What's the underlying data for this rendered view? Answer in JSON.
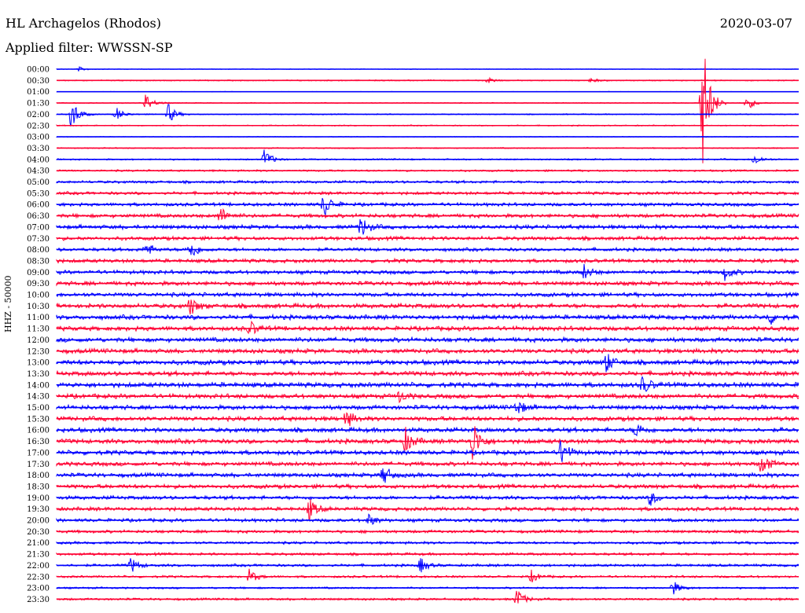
{
  "header": {
    "station": "HL Archagelos (Rhodos)",
    "filter": "Applied filter: WWSSN-SP",
    "date": "2020-03-07"
  },
  "chart_data": {
    "type": "line",
    "title": "HL Archagelos (Rhodos)",
    "subtitle": "Applied filter: WWSSN-SP",
    "date": "2020-03-07",
    "ylabel": "HHZ - 50000",
    "xlabel": "",
    "grid": false,
    "legend": "none",
    "colors": [
      "#0000ff",
      "#ff0033"
    ],
    "rows": [
      "00:00",
      "00:30",
      "01:00",
      "01:30",
      "02:00",
      "02:30",
      "03:00",
      "03:30",
      "04:00",
      "04:30",
      "05:00",
      "05:30",
      "06:00",
      "06:30",
      "07:00",
      "07:30",
      "08:00",
      "08:30",
      "09:00",
      "09:30",
      "10:00",
      "10:30",
      "11:00",
      "11:30",
      "12:00",
      "12:30",
      "13:00",
      "13:30",
      "14:00",
      "14:30",
      "15:00",
      "15:30",
      "16:00",
      "16:30",
      "17:00",
      "17:30",
      "18:00",
      "18:30",
      "19:00",
      "19:30",
      "20:00",
      "20:30",
      "21:00",
      "21:30",
      "22:00",
      "22:30",
      "23:00",
      "23:30"
    ],
    "noise_level": [
      0.3,
      0.6,
      0.3,
      0.5,
      0.6,
      0.6,
      0.4,
      0.6,
      0.8,
      1.0,
      1.4,
      1.6,
      1.8,
      2.0,
      2.2,
      2.0,
      1.8,
      2.0,
      2.0,
      2.2,
      2.2,
      2.4,
      2.4,
      2.4,
      2.4,
      2.4,
      2.6,
      2.4,
      2.6,
      2.4,
      2.4,
      2.4,
      2.4,
      2.4,
      2.4,
      2.2,
      2.2,
      2.2,
      2.0,
      2.0,
      1.8,
      1.6,
      1.4,
      1.4,
      1.4,
      1.2,
      1.0,
      1.2
    ],
    "events": [
      {
        "row": 0,
        "pos": 0.03,
        "amp": 3
      },
      {
        "row": 1,
        "pos": 0.58,
        "amp": 4
      },
      {
        "row": 1,
        "pos": 0.72,
        "amp": 3
      },
      {
        "row": 3,
        "pos": 0.12,
        "amp": 12
      },
      {
        "row": 3,
        "pos": 0.87,
        "amp": 95
      },
      {
        "row": 3,
        "pos": 0.93,
        "amp": 10
      },
      {
        "row": 4,
        "pos": 0.02,
        "amp": 22
      },
      {
        "row": 4,
        "pos": 0.08,
        "amp": 10
      },
      {
        "row": 4,
        "pos": 0.15,
        "amp": 14
      },
      {
        "row": 8,
        "pos": 0.28,
        "amp": 14
      },
      {
        "row": 8,
        "pos": 0.94,
        "amp": 8
      },
      {
        "row": 12,
        "pos": 0.36,
        "amp": 18
      },
      {
        "row": 13,
        "pos": 0.22,
        "amp": 12
      },
      {
        "row": 14,
        "pos": 0.41,
        "amp": 14
      },
      {
        "row": 16,
        "pos": 0.12,
        "amp": 10
      },
      {
        "row": 16,
        "pos": 0.18,
        "amp": 14
      },
      {
        "row": 18,
        "pos": 0.71,
        "amp": 10
      },
      {
        "row": 18,
        "pos": 0.9,
        "amp": 10
      },
      {
        "row": 21,
        "pos": 0.18,
        "amp": 12
      },
      {
        "row": 22,
        "pos": 0.96,
        "amp": 10
      },
      {
        "row": 23,
        "pos": 0.26,
        "amp": 10
      },
      {
        "row": 26,
        "pos": 0.74,
        "amp": 14
      },
      {
        "row": 28,
        "pos": 0.79,
        "amp": 12
      },
      {
        "row": 29,
        "pos": 0.46,
        "amp": 8
      },
      {
        "row": 30,
        "pos": 0.62,
        "amp": 10
      },
      {
        "row": 31,
        "pos": 0.39,
        "amp": 12
      },
      {
        "row": 32,
        "pos": 0.78,
        "amp": 10
      },
      {
        "row": 33,
        "pos": 0.56,
        "amp": 30
      },
      {
        "row": 33,
        "pos": 0.47,
        "amp": 16
      },
      {
        "row": 34,
        "pos": 0.68,
        "amp": 18
      },
      {
        "row": 35,
        "pos": 0.95,
        "amp": 16
      },
      {
        "row": 36,
        "pos": 0.44,
        "amp": 14
      },
      {
        "row": 38,
        "pos": 0.8,
        "amp": 10
      },
      {
        "row": 39,
        "pos": 0.34,
        "amp": 14
      },
      {
        "row": 40,
        "pos": 0.42,
        "amp": 8
      },
      {
        "row": 44,
        "pos": 0.1,
        "amp": 10
      },
      {
        "row": 44,
        "pos": 0.49,
        "amp": 10
      },
      {
        "row": 45,
        "pos": 0.26,
        "amp": 10
      },
      {
        "row": 45,
        "pos": 0.64,
        "amp": 8
      },
      {
        "row": 46,
        "pos": 0.83,
        "amp": 10
      },
      {
        "row": 47,
        "pos": 0.62,
        "amp": 14
      }
    ]
  }
}
